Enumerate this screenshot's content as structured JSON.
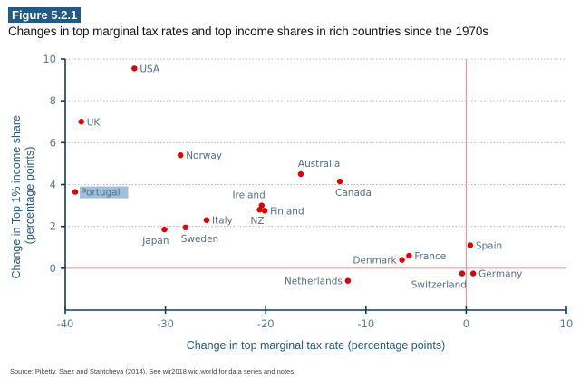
{
  "figure": {
    "label": "Figure 5.2.1",
    "title": "Changes in top marginal tax rates and top income shares in rich countries since the 1970s",
    "source": "Source: Piketty, Saez and Stantcheva (2014). See wir2018.wid.world for data series and notes."
  },
  "chart_data": {
    "type": "scatter",
    "title": "Changes in top marginal tax rates and top income shares in rich countries since the 1970s",
    "xlabel": "Change in top marginal tax rate (percentage points)",
    "ylabel": "Change in Top 1% income share (percentage points)",
    "ylabel_lines": [
      "Change in Top 1% income share",
      "(percentage points)"
    ],
    "xlim": [
      -40,
      10
    ],
    "ylim": [
      -2,
      10
    ],
    "xticks": [
      -40,
      -30,
      -20,
      -10,
      0,
      10
    ],
    "xtick_labels": [
      "-40",
      "-30",
      "-20",
      "-10",
      "0",
      "10"
    ],
    "yticks": [
      0,
      2,
      4,
      6,
      8,
      10
    ],
    "ytick_labels": [
      "0",
      "2",
      "4",
      "6",
      "8",
      "10"
    ],
    "grid": "horizontal-dotted",
    "reference_lines": {
      "x": 0,
      "y": 0,
      "color": "#ee9aa0"
    },
    "point_color": "#e00000",
    "points": [
      {
        "label": "USA",
        "x": -33.1,
        "y": 9.55,
        "anchor": "right"
      },
      {
        "label": "UK",
        "x": -38.4,
        "y": 7.0,
        "anchor": "right"
      },
      {
        "label": "Norway",
        "x": -28.5,
        "y": 5.4,
        "anchor": "right"
      },
      {
        "label": "Portugal",
        "x": -39.0,
        "y": 3.65,
        "anchor": "right",
        "highlighted": true
      },
      {
        "label": "Japan",
        "x": -30.1,
        "y": 1.85,
        "anchor": "below-left"
      },
      {
        "label": "Sweden",
        "x": -28.0,
        "y": 1.95,
        "anchor": "below"
      },
      {
        "label": "Italy",
        "x": -25.9,
        "y": 2.3,
        "anchor": "right"
      },
      {
        "label": "Ireland",
        "x": -20.4,
        "y": 3.0,
        "anchor": "above-left"
      },
      {
        "label": "NZ",
        "x": -20.6,
        "y": 2.8,
        "anchor": "below-left"
      },
      {
        "label": "Finland",
        "x": -20.1,
        "y": 2.75,
        "anchor": "right"
      },
      {
        "label": "Australia",
        "x": -16.5,
        "y": 4.5,
        "anchor": "above"
      },
      {
        "label": "Canada",
        "x": -12.6,
        "y": 4.15,
        "anchor": "below"
      },
      {
        "label": "Denmark",
        "x": -6.4,
        "y": 0.4,
        "anchor": "left"
      },
      {
        "label": "France",
        "x": -5.7,
        "y": 0.6,
        "anchor": "right"
      },
      {
        "label": "Netherlands",
        "x": -11.8,
        "y": -0.6,
        "anchor": "left"
      },
      {
        "label": "Switzerland",
        "x": -0.4,
        "y": -0.25,
        "anchor": "below-left"
      },
      {
        "label": "Germany",
        "x": 0.7,
        "y": -0.25,
        "anchor": "right"
      },
      {
        "label": "Spain",
        "x": 0.4,
        "y": 1.1,
        "anchor": "right"
      }
    ]
  }
}
